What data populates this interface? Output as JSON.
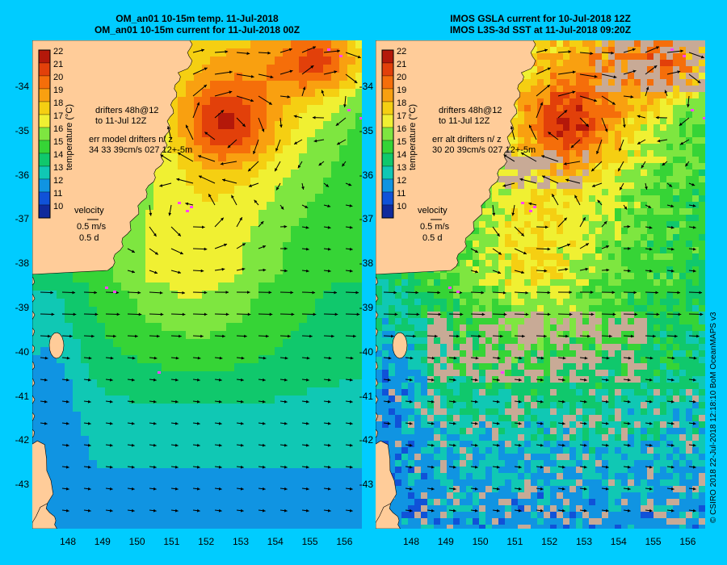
{
  "left_panel": {
    "title_line1": "OM_an01 10-15m temp. 11-Jul-2018",
    "title_line2": "OM_an01 10-15m current for 11-Jul-2018 00Z",
    "drifters_line1": "drifters 48h@12",
    "drifters_line2": "to 11-Jul 12Z",
    "err_line1": "err model drifters n/ z",
    "err_line2": "34 33 39cm/s 027 12+-5m",
    "velocity_label": "velocity",
    "velocity_speed": "0.5 m/s",
    "velocity_days": "0.5 d"
  },
  "right_panel": {
    "title_line1": "IMOS GSLA current for 10-Jul-2018 12Z",
    "title_line2": "IMOS L3S-3d SST at 11-Jul-2018 09:20Z",
    "drifters_line1": "drifters 48h@12",
    "drifters_line2": "to 11-Jul 12Z",
    "err_line1": "err alt drifters n/ z",
    "err_line2": "30 20 39cm/s 027 12+-5m",
    "velocity_label": "velocity",
    "velocity_speed": "0.5 m/s",
    "velocity_days": "0.5 d"
  },
  "colorbar": {
    "label": "temperature (°C)",
    "ticks": [
      "22",
      "21",
      "20",
      "19",
      "18",
      "17",
      "16",
      "15",
      "14",
      "13",
      "12",
      "11",
      "10"
    ],
    "colors": [
      "#b4180a",
      "#e2400a",
      "#f56e0a",
      "#f9a010",
      "#f5cf12",
      "#f0f032",
      "#7ee640",
      "#36d436",
      "#10c86c",
      "#10c8b4",
      "#1094e2",
      "#1052d8",
      "#102a9c"
    ]
  },
  "lat_labels": [
    "-34",
    "-35",
    "-36",
    "-37",
    "-38",
    "-39",
    "-40",
    "-41",
    "-42",
    "-43"
  ],
  "lon_labels": [
    "148",
    "149",
    "150",
    "151",
    "152",
    "153",
    "154",
    "155",
    "156"
  ],
  "credit": "© CSIRO 2018   22-Jul-2018 12:18:10 BoM OceanMAPS v3",
  "colors": {
    "background": "#00ccff",
    "land": "#ffcc99",
    "no_data": "#c8aa96",
    "drifter": "#ff44ff"
  }
}
